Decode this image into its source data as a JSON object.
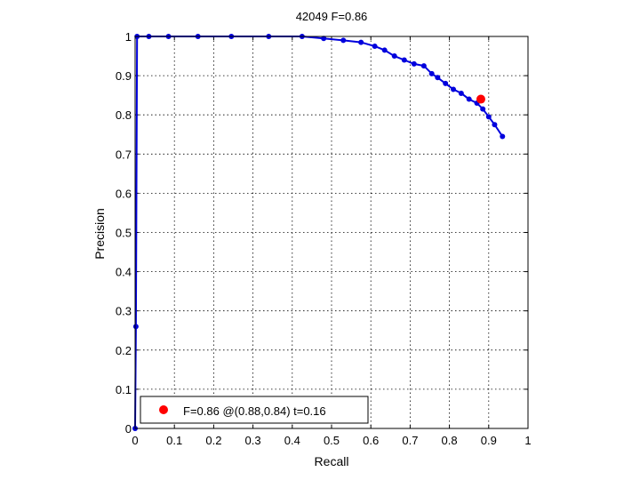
{
  "chart_data": {
    "type": "line",
    "title": "42049 F=0.86",
    "xlabel": "Recall",
    "ylabel": "Precision",
    "xlim": [
      0,
      1
    ],
    "ylim": [
      0,
      1
    ],
    "xticks": [
      "0",
      "0.1",
      "0.2",
      "0.3",
      "0.4",
      "0.5",
      "0.6",
      "0.7",
      "0.8",
      "0.9",
      "1"
    ],
    "yticks": [
      "0",
      "0.1",
      "0.2",
      "0.3",
      "0.4",
      "0.5",
      "0.6",
      "0.7",
      "0.8",
      "0.9",
      "1"
    ],
    "grid": true,
    "series": [
      {
        "color": "#0000dd",
        "x": [
          0,
          0.002,
          0.005,
          0.035,
          0.085,
          0.16,
          0.245,
          0.34,
          0.425,
          0.48,
          0.53,
          0.575,
          0.61,
          0.635,
          0.66,
          0.685,
          0.71,
          0.735,
          0.755,
          0.77,
          0.79,
          0.81,
          0.83,
          0.85,
          0.87,
          0.885,
          0.9,
          0.915,
          0.935
        ],
        "y": [
          0,
          0.26,
          1.0,
          1.0,
          1.0,
          1.0,
          1.0,
          1.0,
          1.0,
          0.995,
          0.99,
          0.985,
          0.975,
          0.965,
          0.95,
          0.94,
          0.93,
          0.925,
          0.905,
          0.895,
          0.88,
          0.865,
          0.855,
          0.84,
          0.83,
          0.815,
          0.795,
          0.775,
          0.745
        ]
      }
    ],
    "best_point": {
      "recall": 0.88,
      "precision": 0.84,
      "color": "#ff0000"
    },
    "legend": {
      "label": "F=0.86 @(0.88,0.84) t=0.16",
      "position": "bottom-left"
    }
  }
}
